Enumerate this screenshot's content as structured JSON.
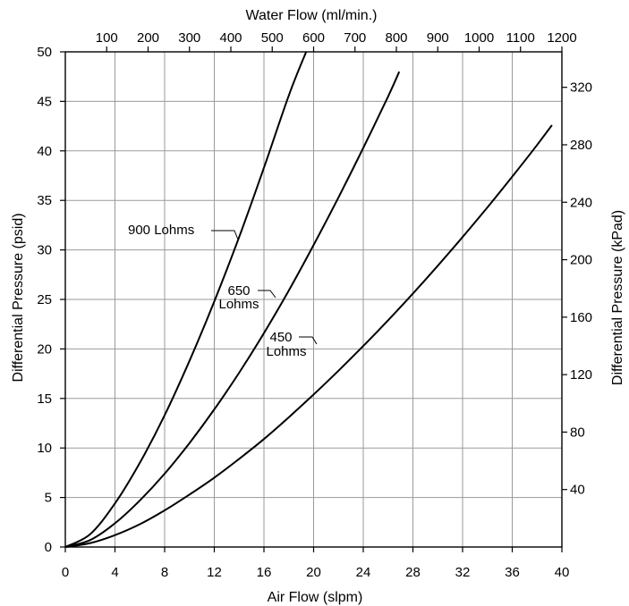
{
  "chart_data": {
    "type": "line",
    "xlabel": "Air Flow (slpm)",
    "ylabel": "Differential Pressure (psid)",
    "x2label": "Water Flow (ml/min.)",
    "y2label": "Differential Pressure (kPad)",
    "xlim": [
      0,
      40
    ],
    "ylim": [
      0,
      50
    ],
    "x2lim": [
      0,
      1200
    ],
    "y2lim": [
      0,
      344.7
    ],
    "grid": true,
    "x_ticks": [
      "0",
      "4",
      "8",
      "12",
      "16",
      "20",
      "24",
      "28",
      "32",
      "36",
      "40"
    ],
    "y_ticks": [
      "0",
      "5",
      "10",
      "15",
      "20",
      "25",
      "30",
      "35",
      "40",
      "45",
      "50"
    ],
    "x2_ticks": [
      "100",
      "200",
      "300",
      "400",
      "500",
      "600",
      "700",
      "800",
      "900",
      "1000",
      "1100",
      "1200"
    ],
    "y2_ticks": [
      "40",
      "80",
      "120",
      "160",
      "200",
      "240",
      "280",
      "320"
    ],
    "series": [
      {
        "name": "900 Lohms",
        "label_lines": [
          "900 Lohms"
        ],
        "x": [
          0,
          2,
          4,
          6,
          8,
          10,
          12,
          14,
          16,
          18,
          19.4
        ],
        "y": [
          0,
          1.3,
          4.4,
          8.5,
          13.3,
          18.8,
          24.8,
          31.3,
          38.3,
          45.6,
          50
        ]
      },
      {
        "name": "650 Lohms",
        "label_lines": [
          "650",
          "Lohms"
        ],
        "x": [
          0,
          2,
          4,
          6,
          8,
          10,
          12,
          14,
          16,
          18,
          20,
          22,
          24,
          26,
          26.9
        ],
        "y": [
          0,
          0.7,
          2.4,
          4.7,
          7.4,
          10.5,
          13.9,
          17.6,
          21.6,
          25.9,
          30.5,
          35.3,
          40.3,
          45.5,
          48.0
        ]
      },
      {
        "name": "450 Lohms",
        "label_lines": [
          "450",
          "Lohms"
        ],
        "x": [
          0,
          2,
          4,
          6,
          8,
          10,
          12,
          14,
          16,
          18,
          20,
          22,
          24,
          26,
          28,
          30,
          32,
          34,
          36,
          38,
          39.2
        ],
        "y": [
          0,
          0.4,
          1.2,
          2.3,
          3.7,
          5.3,
          7.0,
          8.9,
          10.9,
          13.1,
          15.4,
          17.8,
          20.3,
          22.9,
          25.6,
          28.4,
          31.3,
          34.3,
          37.4,
          40.6,
          42.6
        ]
      }
    ]
  }
}
